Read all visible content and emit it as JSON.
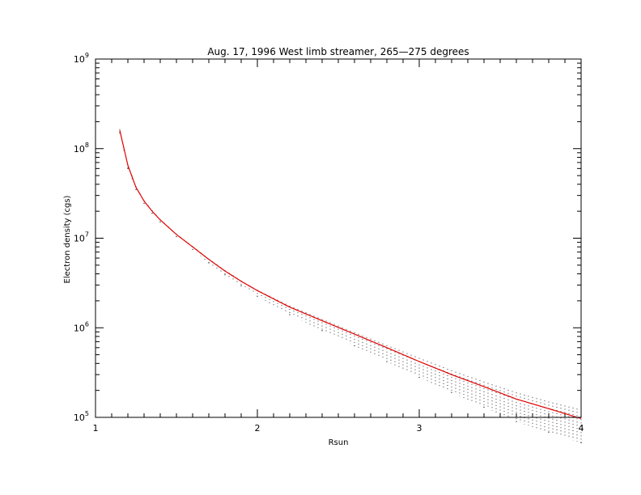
{
  "chart_data": {
    "type": "line",
    "title": "Aug. 17, 1996 West limb streamer, 265—275 degrees",
    "xlabel": "Rsun",
    "ylabel": "Electron density (cgs)",
    "xlim": [
      1,
      4
    ],
    "ylim": [
      100000,
      1000000000
    ],
    "yscale": "log",
    "x_ticks": [
      {
        "value": 1,
        "label": "1"
      },
      {
        "value": 2,
        "label": "2"
      },
      {
        "value": 3,
        "label": "3"
      },
      {
        "value": 4,
        "label": "4"
      }
    ],
    "y_ticks": [
      {
        "value": 100000,
        "base": "10",
        "exp": "5"
      },
      {
        "value": 1000000,
        "base": "10",
        "exp": "6"
      },
      {
        "value": 10000000,
        "base": "10",
        "exp": "7"
      },
      {
        "value": 100000000,
        "base": "10",
        "exp": "8"
      },
      {
        "value": 1000000000,
        "base": "10",
        "exp": "9"
      }
    ],
    "grid": false,
    "colors": {
      "fit_line": "#e00000",
      "data": "#000000",
      "axes": "#000000"
    },
    "series": [
      {
        "style": "fit-line",
        "x": [
          1.15,
          1.2,
          1.25,
          1.3,
          1.35,
          1.4,
          1.5,
          1.6,
          1.7,
          1.8,
          1.9,
          2.0,
          2.2,
          2.4,
          2.6,
          2.8,
          3.0,
          3.2,
          3.4,
          3.6,
          3.8,
          4.0
        ],
        "y": [
          160000000,
          65000000,
          37000000,
          26000000,
          20000000,
          16000000,
          11000000,
          8000000,
          5800000,
          4300000,
          3300000,
          2600000,
          1700000,
          1200000,
          850000,
          600000,
          420000,
          300000,
          220000,
          160000,
          125000,
          97000
        ]
      },
      {
        "style": "data-range",
        "x": [
          1.15,
          1.2,
          1.25,
          1.3,
          1.35,
          1.4,
          1.5,
          1.6,
          1.7,
          1.8,
          1.9,
          2.0,
          2.2,
          2.4,
          2.6,
          2.8,
          3.0,
          3.2,
          3.4,
          3.6,
          3.8,
          4.0
        ],
        "y_low": [
          150000000,
          60000000,
          35000000,
          24500000,
          19000000,
          15200000,
          10400000,
          7500000,
          5300000,
          3900000,
          2950000,
          2250000,
          1400000,
          930000,
          630000,
          420000,
          280000,
          190000,
          130000,
          90000,
          68000,
          52000
        ],
        "y_high": [
          165000000,
          67000000,
          38000000,
          26500000,
          20500000,
          16300000,
          11200000,
          8150000,
          5900000,
          4400000,
          3370000,
          2650000,
          1760000,
          1250000,
          890000,
          640000,
          460000,
          335000,
          250000,
          190000,
          150000,
          122000
        ]
      }
    ]
  }
}
